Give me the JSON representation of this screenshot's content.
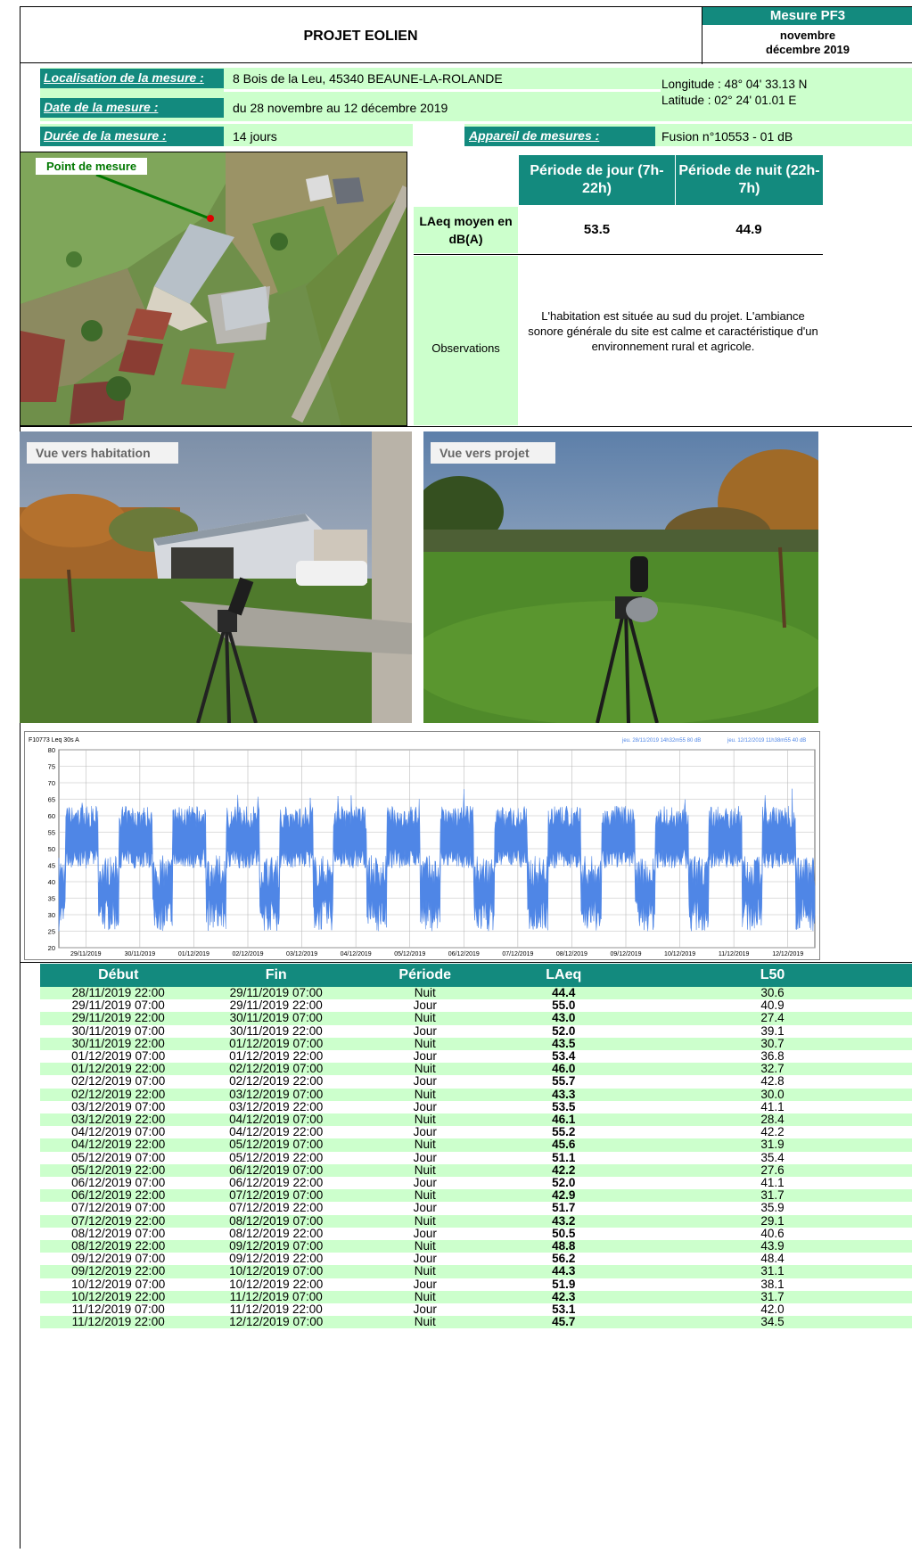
{
  "header": {
    "title": "PROJET EOLIEN",
    "mesure_label": "Mesure PF3",
    "period_line1": "novembre",
    "period_line2": "décembre 2019"
  },
  "info": {
    "loc_label": "Localisation de la mesure :",
    "loc_value": "8 Bois de la Leu, 45340 BEAUNE-LA-ROLANDE",
    "date_label": "Date de la mesure :",
    "date_value": "du 28 novembre au 12 décembre 2019",
    "duree_label": "Durée de la mesure :",
    "duree_value": "14 jours",
    "appareil_label": "Appareil de mesures :",
    "appareil_value": "Fusion n°10553 - 01 dB",
    "longitude": "Longitude : 48° 04' 33.13 N",
    "latitude": "Latitude : 02° 24' 01.01 E"
  },
  "map": {
    "point_label": "Point de mesure"
  },
  "summary": {
    "day_header": "Période de jour (7h-22h)",
    "night_header": "Période de nuit (22h-7h)",
    "laeq_label": "LAeq moyen en dB(A)",
    "day_value": "53.5",
    "night_value": "44.9",
    "obs_label": "Observations",
    "obs_text": "L'habitation est située au sud du projet. L'ambiance sonore générale du site est calme et caractéristique d'un environnement rural et agricole."
  },
  "photos": {
    "left_label": "Vue vers habitation",
    "right_label": "Vue vers projet"
  },
  "chart_data": {
    "type": "area",
    "header_left": "F10773   Leq 30s  A",
    "header_right_1": "jeu. 28/11/2019 14h32m55   80 dB",
    "header_right_2": "jeu. 12/12/2019 11h38m55   40 dB",
    "ylim": [
      20,
      80
    ],
    "yticks": [
      "80",
      "75",
      "70",
      "65",
      "60",
      "55",
      "50",
      "45",
      "40",
      "35",
      "30",
      "25",
      "20"
    ],
    "xticks": [
      "29/11/2019",
      "30/11/2019",
      "01/12/2019",
      "02/12/2019",
      "03/12/2019",
      "04/12/2019",
      "05/12/2019",
      "06/12/2019",
      "07/12/2019",
      "08/12/2019",
      "09/12/2019",
      "10/12/2019",
      "11/12/2019",
      "12/12/2019"
    ],
    "color": "#4f86e6"
  },
  "table": {
    "headers": [
      "Début",
      "Fin",
      "Période",
      "LAeq",
      "L50"
    ],
    "rows": [
      [
        "28/11/2019 22:00",
        "29/11/2019 07:00",
        "Nuit",
        "44.4",
        "30.6"
      ],
      [
        "29/11/2019 07:00",
        "29/11/2019 22:00",
        "Jour",
        "55.0",
        "40.9"
      ],
      [
        "29/11/2019 22:00",
        "30/11/2019 07:00",
        "Nuit",
        "43.0",
        "27.4"
      ],
      [
        "30/11/2019 07:00",
        "30/11/2019 22:00",
        "Jour",
        "52.0",
        "39.1"
      ],
      [
        "30/11/2019 22:00",
        "01/12/2019 07:00",
        "Nuit",
        "43.5",
        "30.7"
      ],
      [
        "01/12/2019 07:00",
        "01/12/2019 22:00",
        "Jour",
        "53.4",
        "36.8"
      ],
      [
        "01/12/2019 22:00",
        "02/12/2019 07:00",
        "Nuit",
        "46.0",
        "32.7"
      ],
      [
        "02/12/2019 07:00",
        "02/12/2019 22:00",
        "Jour",
        "55.7",
        "42.8"
      ],
      [
        "02/12/2019 22:00",
        "03/12/2019 07:00",
        "Nuit",
        "43.3",
        "30.0"
      ],
      [
        "03/12/2019 07:00",
        "03/12/2019 22:00",
        "Jour",
        "53.5",
        "41.1"
      ],
      [
        "03/12/2019 22:00",
        "04/12/2019 07:00",
        "Nuit",
        "46.1",
        "28.4"
      ],
      [
        "04/12/2019 07:00",
        "04/12/2019 22:00",
        "Jour",
        "55.2",
        "42.2"
      ],
      [
        "04/12/2019 22:00",
        "05/12/2019 07:00",
        "Nuit",
        "45.6",
        "31.9"
      ],
      [
        "05/12/2019 07:00",
        "05/12/2019 22:00",
        "Jour",
        "51.1",
        "35.4"
      ],
      [
        "05/12/2019 22:00",
        "06/12/2019 07:00",
        "Nuit",
        "42.2",
        "27.6"
      ],
      [
        "06/12/2019 07:00",
        "06/12/2019 22:00",
        "Jour",
        "52.0",
        "41.1"
      ],
      [
        "06/12/2019 22:00",
        "07/12/2019 07:00",
        "Nuit",
        "42.9",
        "31.7"
      ],
      [
        "07/12/2019 07:00",
        "07/12/2019 22:00",
        "Jour",
        "51.7",
        "35.9"
      ],
      [
        "07/12/2019 22:00",
        "08/12/2019 07:00",
        "Nuit",
        "43.2",
        "29.1"
      ],
      [
        "08/12/2019 07:00",
        "08/12/2019 22:00",
        "Jour",
        "50.5",
        "40.6"
      ],
      [
        "08/12/2019 22:00",
        "09/12/2019 07:00",
        "Nuit",
        "48.8",
        "43.9"
      ],
      [
        "09/12/2019 07:00",
        "09/12/2019 22:00",
        "Jour",
        "56.2",
        "48.4"
      ],
      [
        "09/12/2019 22:00",
        "10/12/2019 07:00",
        "Nuit",
        "44.3",
        "31.1"
      ],
      [
        "10/12/2019 07:00",
        "10/12/2019 22:00",
        "Jour",
        "51.9",
        "38.1"
      ],
      [
        "10/12/2019 22:00",
        "11/12/2019 07:00",
        "Nuit",
        "42.3",
        "31.7"
      ],
      [
        "11/12/2019 07:00",
        "11/12/2019 22:00",
        "Jour",
        "53.1",
        "42.0"
      ],
      [
        "11/12/2019 22:00",
        "12/12/2019 07:00",
        "Nuit",
        "45.7",
        "34.5"
      ]
    ]
  }
}
